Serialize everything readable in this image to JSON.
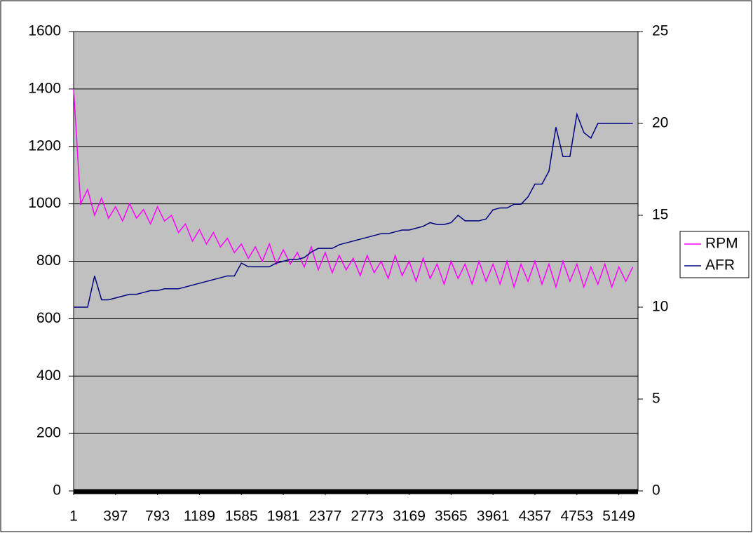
{
  "chart_data": {
    "type": "line",
    "x": [
      1,
      67,
      133,
      199,
      265,
      331,
      397,
      463,
      529,
      595,
      661,
      727,
      793,
      859,
      925,
      991,
      1057,
      1123,
      1189,
      1255,
      1321,
      1387,
      1453,
      1519,
      1585,
      1651,
      1717,
      1783,
      1849,
      1915,
      1981,
      2047,
      2113,
      2179,
      2245,
      2311,
      2377,
      2443,
      2509,
      2575,
      2641,
      2707,
      2773,
      2839,
      2905,
      2971,
      3037,
      3103,
      3169,
      3235,
      3301,
      3367,
      3433,
      3499,
      3565,
      3631,
      3697,
      3763,
      3829,
      3895,
      3961,
      4027,
      4093,
      4159,
      4225,
      4291,
      4357,
      4423,
      4489,
      4555,
      4621,
      4687,
      4753,
      4819,
      4885,
      4951,
      5017,
      5083,
      5149,
      5215,
      5281
    ],
    "xlim": [
      1,
      5330
    ],
    "xticks": [
      1,
      397,
      793,
      1189,
      1585,
      1981,
      2377,
      2773,
      3169,
      3565,
      3961,
      4357,
      4753,
      5149
    ],
    "series": [
      {
        "name": "RPM",
        "color": "#ff00ff",
        "values": [
          1400,
          1000,
          1050,
          960,
          1020,
          950,
          990,
          940,
          1000,
          950,
          980,
          930,
          990,
          940,
          960,
          900,
          930,
          870,
          910,
          860,
          900,
          850,
          880,
          830,
          860,
          810,
          850,
          800,
          860,
          790,
          840,
          790,
          830,
          780,
          850,
          770,
          830,
          760,
          820,
          770,
          810,
          750,
          820,
          760,
          800,
          740,
          820,
          750,
          800,
          730,
          810,
          740,
          790,
          720,
          800,
          740,
          790,
          720,
          800,
          730,
          790,
          720,
          800,
          710,
          790,
          730,
          800,
          720,
          790,
          710,
          800,
          730,
          790,
          710,
          780,
          720,
          790,
          710,
          780,
          730,
          780
        ]
      },
      {
        "name": "AFR",
        "color": "#000080",
        "axis": "y2",
        "values": [
          10,
          10,
          10,
          11.7,
          10.4,
          10.4,
          10.5,
          10.6,
          10.7,
          10.7,
          10.8,
          10.9,
          10.9,
          11,
          11,
          11,
          11.1,
          11.2,
          11.3,
          11.4,
          11.5,
          11.6,
          11.7,
          11.7,
          12.4,
          12.2,
          12.2,
          12.2,
          12.2,
          12.4,
          12.5,
          12.6,
          12.6,
          12.7,
          13,
          13.2,
          13.2,
          13.2,
          13.4,
          13.5,
          13.6,
          13.7,
          13.8,
          13.9,
          14,
          14,
          14.1,
          14.2,
          14.2,
          14.3,
          14.4,
          14.6,
          14.5,
          14.5,
          14.6,
          15,
          14.7,
          14.7,
          14.7,
          14.8,
          15.3,
          15.4,
          15.4,
          15.6,
          15.6,
          16,
          16.7,
          16.7,
          17.4,
          19.8,
          18.2,
          18.2,
          20.5,
          19.5,
          19.2,
          20,
          20,
          20,
          20,
          20,
          20
        ]
      }
    ],
    "ylim": [
      0,
      1600
    ],
    "yticks": [
      0,
      200,
      400,
      600,
      800,
      1000,
      1200,
      1400,
      1600
    ],
    "y2lim": [
      0,
      25
    ],
    "y2ticks": [
      0,
      5,
      10,
      15,
      20,
      25
    ],
    "grid": true,
    "legend": "right"
  }
}
